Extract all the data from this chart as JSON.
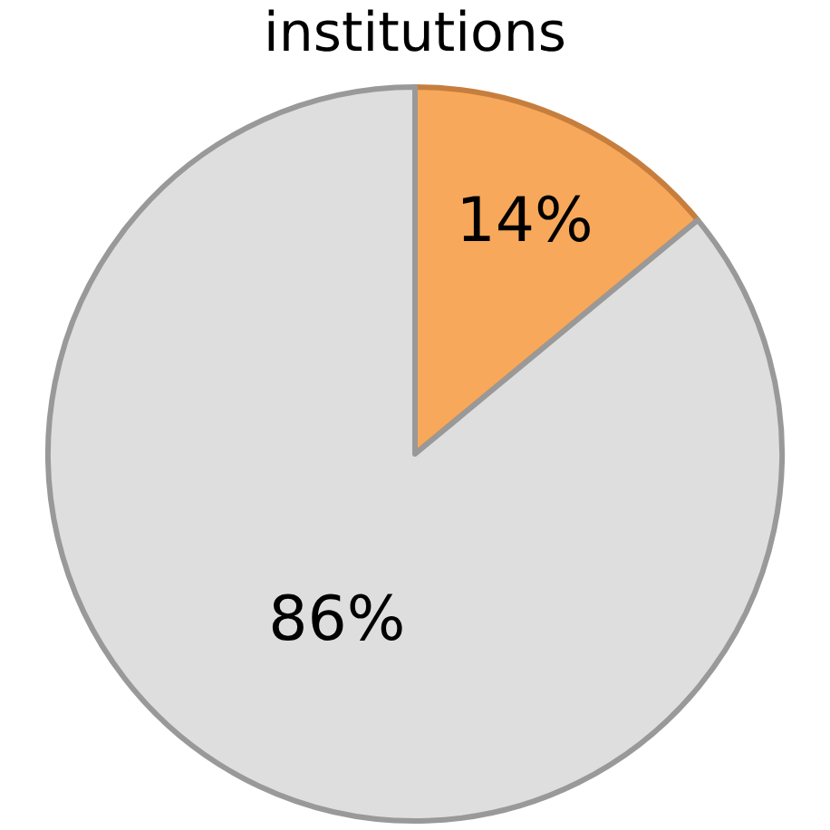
{
  "chart_data": {
    "type": "pie",
    "title": "institutions",
    "categories": [
      null,
      null
    ],
    "values": [
      14,
      86
    ],
    "colors": [
      "#f8a85a",
      "#dedede"
    ],
    "value_labels": [
      "14%",
      "86%"
    ],
    "legend": false
  }
}
